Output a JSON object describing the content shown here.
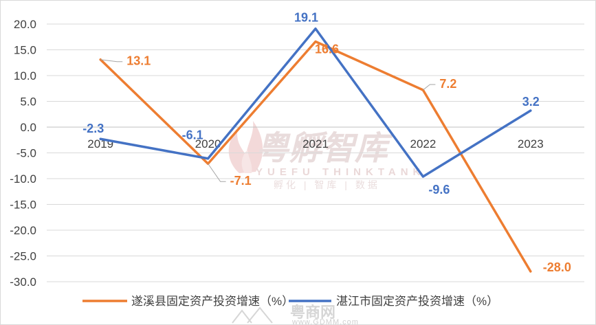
{
  "colors": {
    "series_1": "#ED7D31",
    "series_2": "#4472C4",
    "grid": "#d9d9d9",
    "text": "#404040"
  },
  "watermark": {
    "main": "粤孵智库",
    "sub": "YUEFU THINKTANK",
    "sub2": "孵化 | 智库 | 数据",
    "bottom": "粤商网",
    "bottom_url": "www.GDMM.com"
  },
  "chart_data": {
    "type": "line",
    "title": "",
    "xlabel": "",
    "ylabel": "",
    "categories": [
      "2019",
      "2020",
      "2021",
      "2022",
      "2023"
    ],
    "ylim": [
      -30,
      20
    ],
    "yticks": [
      "20.0",
      "15.0",
      "10.0",
      "5.0",
      "0.0",
      "-5.0",
      "-10.0",
      "-15.0",
      "-20.0",
      "-25.0",
      "-30.0"
    ],
    "grid": true,
    "legend_position": "bottom",
    "series": [
      {
        "name": "遂溪县固定资产投资增速（%）",
        "values": [
          13.1,
          -7.1,
          16.6,
          7.2,
          -28.0
        ],
        "labels": [
          "13.1",
          "-7.1",
          "16.6",
          "7.2",
          "-28.0"
        ]
      },
      {
        "name": "湛江市固定资产投资增速（%）",
        "values": [
          -2.3,
          -6.1,
          19.1,
          -9.6,
          3.2
        ],
        "labels": [
          "-2.3",
          "-6.1",
          "19.1",
          "-9.6",
          "3.2"
        ]
      }
    ]
  }
}
